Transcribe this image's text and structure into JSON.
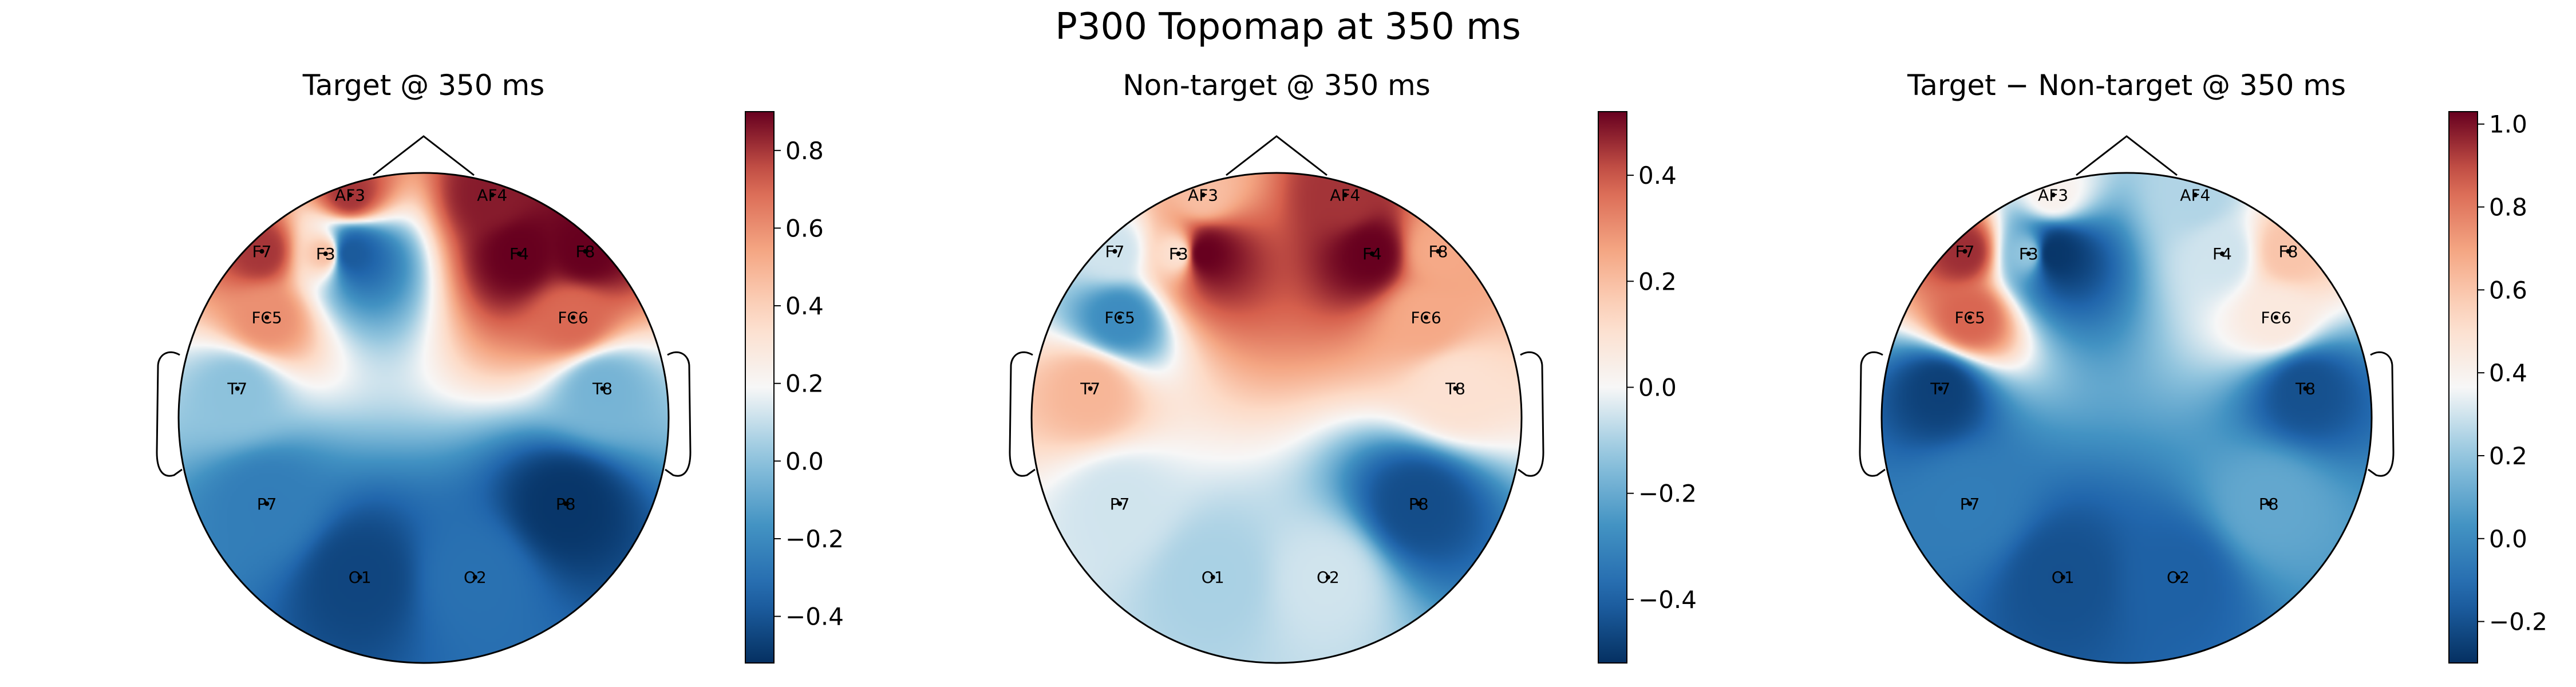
{
  "figure": {
    "title": "P300 Topomap at 350 ms"
  },
  "chart_data": [
    {
      "type": "heatmap",
      "title": "Target @ 350 ms",
      "colormap": "RdBu_r",
      "clim": [
        -0.52,
        0.9
      ],
      "colorbar_ticks": [
        "0.8",
        "0.6",
        "0.4",
        "0.2",
        "0.0",
        "−0.2",
        "−0.4"
      ],
      "colorbar_tick_values": [
        0.8,
        0.6,
        0.4,
        0.2,
        0.0,
        -0.2,
        -0.4
      ],
      "channels": [
        {
          "name": "AF3",
          "value": 0.8
        },
        {
          "name": "AF4",
          "value": 0.85
        },
        {
          "name": "F7",
          "value": 0.8
        },
        {
          "name": "F3",
          "value": 0.45
        },
        {
          "name": "F4",
          "value": 0.9
        },
        {
          "name": "F8",
          "value": 0.9
        },
        {
          "name": "FC5",
          "value": 0.6
        },
        {
          "name": "FC6",
          "value": 0.7
        },
        {
          "name": "T7",
          "value": 0.0
        },
        {
          "name": "T8",
          "value": -0.05
        },
        {
          "name": "P7",
          "value": -0.25
        },
        {
          "name": "P8",
          "value": -0.5
        },
        {
          "name": "O1",
          "value": -0.45
        },
        {
          "name": "O2",
          "value": -0.3
        }
      ],
      "local_extrema": [
        {
          "near": "F3-F4 midline",
          "value": -0.38
        }
      ]
    },
    {
      "type": "heatmap",
      "title": "Non-target @ 350 ms",
      "colormap": "RdBu_r",
      "clim": [
        -0.52,
        0.52
      ],
      "colorbar_ticks": [
        "0.4",
        "0.2",
        "0.0",
        "−0.2",
        "−0.4"
      ],
      "colorbar_tick_values": [
        0.4,
        0.2,
        0.0,
        -0.2,
        -0.4
      ],
      "channels": [
        {
          "name": "AF3",
          "value": 0.2
        },
        {
          "name": "AF4",
          "value": 0.45
        },
        {
          "name": "F7",
          "value": -0.05
        },
        {
          "name": "F3",
          "value": 0.1
        },
        {
          "name": "F4",
          "value": 0.52
        },
        {
          "name": "F8",
          "value": 0.25
        },
        {
          "name": "FC5",
          "value": -0.28
        },
        {
          "name": "FC6",
          "value": 0.25
        },
        {
          "name": "T7",
          "value": 0.22
        },
        {
          "name": "T8",
          "value": 0.1
        },
        {
          "name": "P7",
          "value": -0.05
        },
        {
          "name": "P8",
          "value": -0.45
        },
        {
          "name": "O1",
          "value": -0.1
        },
        {
          "name": "O2",
          "value": -0.05
        }
      ],
      "local_extrema": [
        {
          "near": "F3-F4 midline",
          "value": 0.52
        }
      ]
    },
    {
      "type": "heatmap",
      "title": "Target − Non-target @ 350 ms",
      "colormap": "RdBu_r",
      "clim": [
        -0.3,
        1.03
      ],
      "colorbar_ticks": [
        "1.0",
        "0.8",
        "0.6",
        "0.4",
        "0.2",
        "0.0",
        "−0.2"
      ],
      "colorbar_tick_values": [
        1.0,
        0.8,
        0.6,
        0.4,
        0.2,
        0.0,
        -0.2
      ],
      "channels": [
        {
          "name": "AF3",
          "value": 0.4
        },
        {
          "name": "AF4",
          "value": 0.25
        },
        {
          "name": "F7",
          "value": 0.95
        },
        {
          "name": "F3",
          "value": 0.2
        },
        {
          "name": "F4",
          "value": 0.3
        },
        {
          "name": "F8",
          "value": 0.6
        },
        {
          "name": "FC5",
          "value": 0.85
        },
        {
          "name": "FC6",
          "value": 0.45
        },
        {
          "name": "T7",
          "value": -0.25
        },
        {
          "name": "T8",
          "value": -0.2
        },
        {
          "name": "P7",
          "value": -0.05
        },
        {
          "name": "P8",
          "value": 0.1
        },
        {
          "name": "O1",
          "value": -0.2
        },
        {
          "name": "O2",
          "value": -0.15
        }
      ],
      "local_extrema": [
        {
          "near": "F3-F4 midline",
          "value": -0.28
        }
      ]
    }
  ]
}
